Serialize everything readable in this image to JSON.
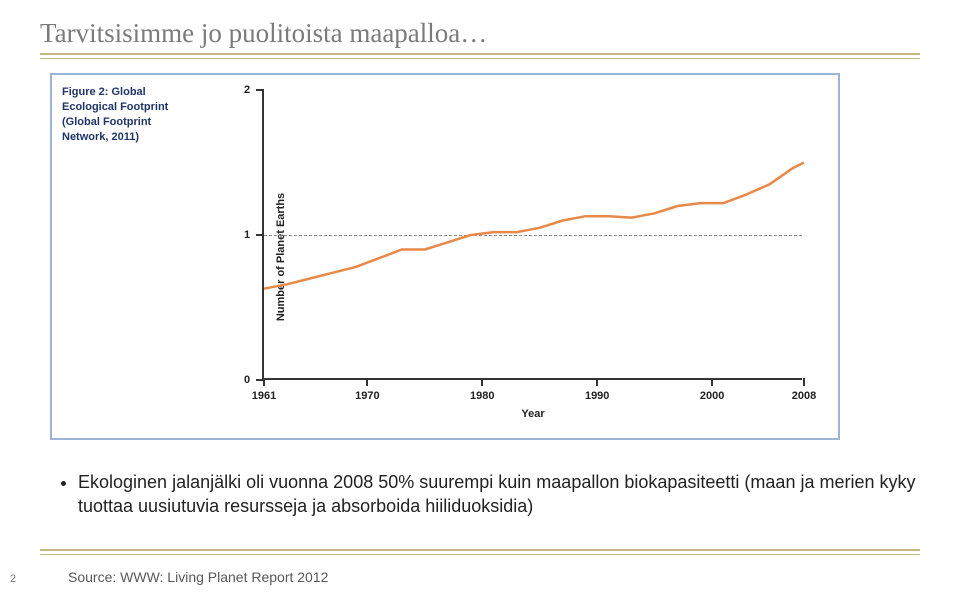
{
  "slide": {
    "title": "Tarvitsisimme jo puolitoista maapalloa…",
    "title_color": "#7b7b7b",
    "rule_color": "#c0b68a",
    "pageNumber": "2",
    "source": "Source: WWW: Living Planet Report 2012"
  },
  "bullet": {
    "text": "Ekologinen jalanjälki oli vuonna 2008 50% suurempi kuin maapallon biokapasiteetti (maan ja merien kyky tuottaa uusiutuvia resursseja ja absorboida hiiliduoksidia)"
  },
  "chart": {
    "type": "line",
    "border_color": "#9db4d8",
    "background_color": "#ffffff",
    "caption_lines": [
      "Figure 2: Global",
      "Ecological Footprint",
      "(Global Footprint",
      "Network, 2011)"
    ],
    "caption_color": "#203567",
    "ylabel": "Number of Planet Earths",
    "xlabel": "Year",
    "xlim": [
      1961,
      2008
    ],
    "ylim": [
      0,
      2
    ],
    "yticks": [
      0,
      1,
      2
    ],
    "xticks": [
      1961,
      1970,
      1980,
      1990,
      2000,
      2008
    ],
    "reference_line_y": 1,
    "reference_line_color": "#888888",
    "axis_color": "#333333",
    "label_color": "#222222",
    "label_fontsize": 11,
    "series": {
      "color": "#e8894a",
      "line_width": 2.5,
      "x": [
        1961,
        1963,
        1965,
        1967,
        1969,
        1971,
        1973,
        1975,
        1977,
        1979,
        1981,
        1983,
        1985,
        1987,
        1989,
        1991,
        1993,
        1995,
        1997,
        1999,
        2001,
        2003,
        2005,
        2007,
        2008
      ],
      "y": [
        0.63,
        0.66,
        0.7,
        0.74,
        0.78,
        0.84,
        0.9,
        0.9,
        0.95,
        1.0,
        1.02,
        1.02,
        1.05,
        1.1,
        1.13,
        1.13,
        1.12,
        1.15,
        1.2,
        1.22,
        1.22,
        1.28,
        1.35,
        1.46,
        1.5
      ]
    }
  }
}
